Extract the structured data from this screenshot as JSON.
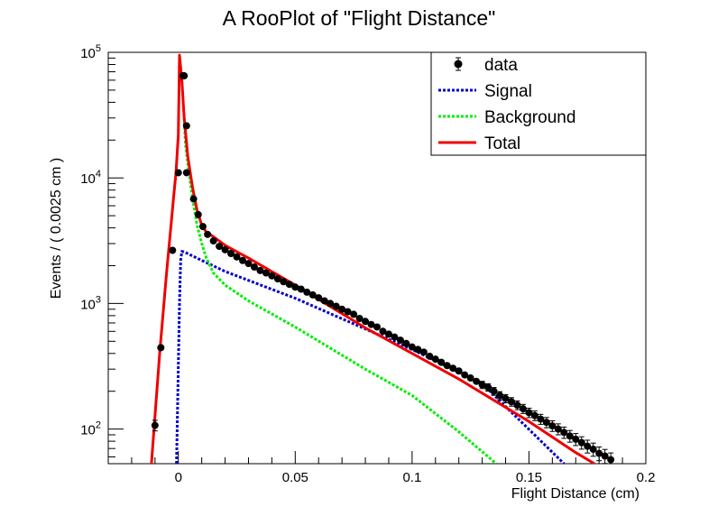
{
  "chart_data": {
    "type": "scatter",
    "title": "A RooPlot of \"Flight Distance\"",
    "xlabel": "Flight Distance (cm)",
    "ylabel": "Events / ( 0.0025 cm )",
    "xlim": [
      -0.03,
      0.2
    ],
    "ylim": [
      53,
      100000
    ],
    "y_scale": "log",
    "x_ticks": [
      {
        "value": 0,
        "label": "0"
      },
      {
        "value": 0.05,
        "label": "0.05"
      },
      {
        "value": 0.1,
        "label": "0.1"
      },
      {
        "value": 0.15,
        "label": "0.15"
      },
      {
        "value": 0.2,
        "label": "0.2"
      }
    ],
    "y_ticks": [
      {
        "value": 100,
        "base": "10",
        "exp": "2"
      },
      {
        "value": 1000,
        "base": "10",
        "exp": "3"
      },
      {
        "value": 10000,
        "base": "10",
        "exp": "4"
      },
      {
        "value": 100000,
        "base": "10",
        "exp": "5"
      }
    ],
    "legend": {
      "position": "top-right",
      "entries": [
        {
          "label": "data",
          "style": "marker",
          "color": "#000000"
        },
        {
          "label": "Signal",
          "style": "dotted",
          "color": "#0000cc"
        },
        {
          "label": "Background",
          "style": "dotted",
          "color": "#00ee00"
        },
        {
          "label": "Total",
          "style": "solid",
          "color": "#ee0000"
        }
      ]
    },
    "series": [
      {
        "name": "data",
        "kind": "points_with_errors",
        "color": "#000000",
        "x": [
          -0.01,
          -0.0075,
          -0.0025,
          0.0,
          0.0025,
          0.0035,
          0.0065,
          0.0085,
          0.0105,
          0.0125,
          0.015,
          0.0175,
          0.02,
          0.0225,
          0.025,
          0.0275,
          0.03,
          0.0325,
          0.035,
          0.0375,
          0.04,
          0.0425,
          0.045,
          0.0475,
          0.05,
          0.0525,
          0.055,
          0.0575,
          0.06,
          0.0625,
          0.065,
          0.0675,
          0.07,
          0.0725,
          0.075,
          0.0775,
          0.08,
          0.0825,
          0.085,
          0.0875,
          0.09,
          0.0925,
          0.095,
          0.0975,
          0.1,
          0.1025,
          0.105,
          0.1075,
          0.11,
          0.1125,
          0.115,
          0.1175,
          0.12,
          0.1225,
          0.125,
          0.1275,
          0.13,
          0.1325,
          0.135,
          0.1375,
          0.14,
          0.1425,
          0.145,
          0.1475,
          0.15,
          0.1525,
          0.155,
          0.1575,
          0.16,
          0.1625,
          0.165,
          0.1675,
          0.17,
          0.1725,
          0.175,
          0.1775,
          0.18,
          0.1825,
          0.185
        ],
        "y": [
          107,
          445,
          2650,
          11000,
          65000,
          11000,
          6800,
          5100,
          4100,
          3550,
          3150,
          2850,
          2680,
          2500,
          2350,
          2200,
          2080,
          1950,
          1830,
          1750,
          1660,
          1570,
          1490,
          1420,
          1350,
          1300,
          1230,
          1170,
          1110,
          1050,
          1000,
          950,
          900,
          860,
          820,
          760,
          720,
          680,
          650,
          600,
          570,
          540,
          510,
          480,
          450,
          430,
          410,
          380,
          360,
          340,
          320,
          305,
          290,
          270,
          255,
          240,
          225,
          215,
          200,
          185,
          175,
          165,
          155,
          145,
          135,
          128,
          120,
          113,
          106,
          100,
          94,
          88,
          83,
          78,
          73,
          69,
          64,
          61,
          57
        ],
        "extra_y": [
          {
            "x": 0.0035,
            "y": 26000
          },
          {
            "x": 0.002,
            "y": 65000
          }
        ]
      },
      {
        "name": "Signal",
        "kind": "line",
        "style": "dotted",
        "color": "#0000cc",
        "x": [
          -0.0008,
          0.0005,
          0.001,
          0.0015,
          0.003,
          0.01,
          0.02,
          0.05,
          0.1,
          0.13,
          0.165
        ],
        "y": [
          53,
          1000,
          2200,
          2600,
          2550,
          2200,
          1800,
          1100,
          430,
          230,
          53
        ]
      },
      {
        "name": "Background",
        "kind": "line",
        "style": "dotted",
        "color": "#00ee00",
        "x": [
          0.0025,
          0.003,
          0.0045,
          0.006,
          0.008,
          0.01,
          0.012,
          0.015,
          0.02,
          0.03,
          0.05,
          0.08,
          0.1,
          0.12,
          0.136
        ],
        "y": [
          30000,
          19000,
          11000,
          7000,
          4200,
          3000,
          2300,
          1750,
          1400,
          1050,
          650,
          300,
          185,
          95,
          53
        ]
      },
      {
        "name": "Total",
        "kind": "line",
        "style": "solid",
        "color": "#ee0000",
        "x": [
          -0.0115,
          -0.008,
          -0.005,
          -0.003,
          -0.002,
          -0.001,
          0.0,
          0.0005,
          0.0015,
          0.0025,
          0.004,
          0.006,
          0.008,
          0.01,
          0.012,
          0.015,
          0.02,
          0.03,
          0.05,
          0.08,
          0.1,
          0.12,
          0.15,
          0.17,
          0.178
        ],
        "y": [
          53,
          400,
          1800,
          4500,
          7200,
          11000,
          22000,
          95000,
          60000,
          30000,
          15000,
          8500,
          5500,
          4200,
          3700,
          3400,
          2900,
          2300,
          1400,
          640,
          400,
          250,
          115,
          65,
          53
        ]
      }
    ]
  }
}
